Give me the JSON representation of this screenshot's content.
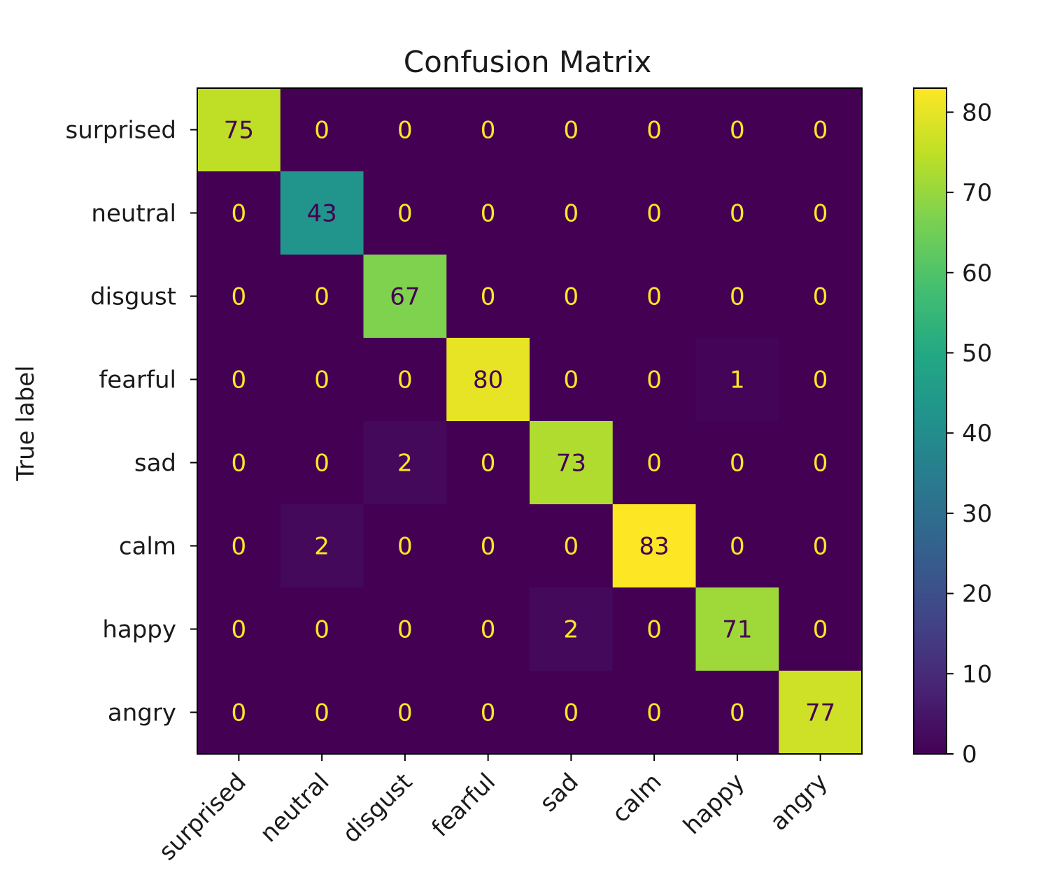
{
  "chart_data": {
    "type": "heatmap",
    "title": "Confusion Matrix",
    "ylabel": "True label",
    "xlabel": "",
    "row_labels": [
      "surprised",
      "neutral",
      "disgust",
      "fearful",
      "sad",
      "calm",
      "happy",
      "angry"
    ],
    "col_labels": [
      "surprised",
      "neutral",
      "disgust",
      "fearful",
      "sad",
      "calm",
      "happy",
      "angry"
    ],
    "matrix": [
      [
        75,
        0,
        0,
        0,
        0,
        0,
        0,
        0
      ],
      [
        0,
        43,
        0,
        0,
        0,
        0,
        0,
        0
      ],
      [
        0,
        0,
        67,
        0,
        0,
        0,
        0,
        0
      ],
      [
        0,
        0,
        0,
        80,
        0,
        0,
        1,
        0
      ],
      [
        0,
        0,
        2,
        0,
        73,
        0,
        0,
        0
      ],
      [
        0,
        2,
        0,
        0,
        0,
        83,
        0,
        0
      ],
      [
        0,
        0,
        0,
        0,
        2,
        0,
        71,
        0
      ],
      [
        0,
        0,
        0,
        0,
        0,
        0,
        0,
        77
      ]
    ],
    "colorbar": {
      "colormap": "viridis",
      "vmin": 0,
      "vmax": 83,
      "ticks": [
        0,
        10,
        20,
        30,
        40,
        50,
        60,
        70,
        80
      ]
    },
    "text_color_dark_cells": "#fde725",
    "text_color_light_cells": "#440154"
  }
}
